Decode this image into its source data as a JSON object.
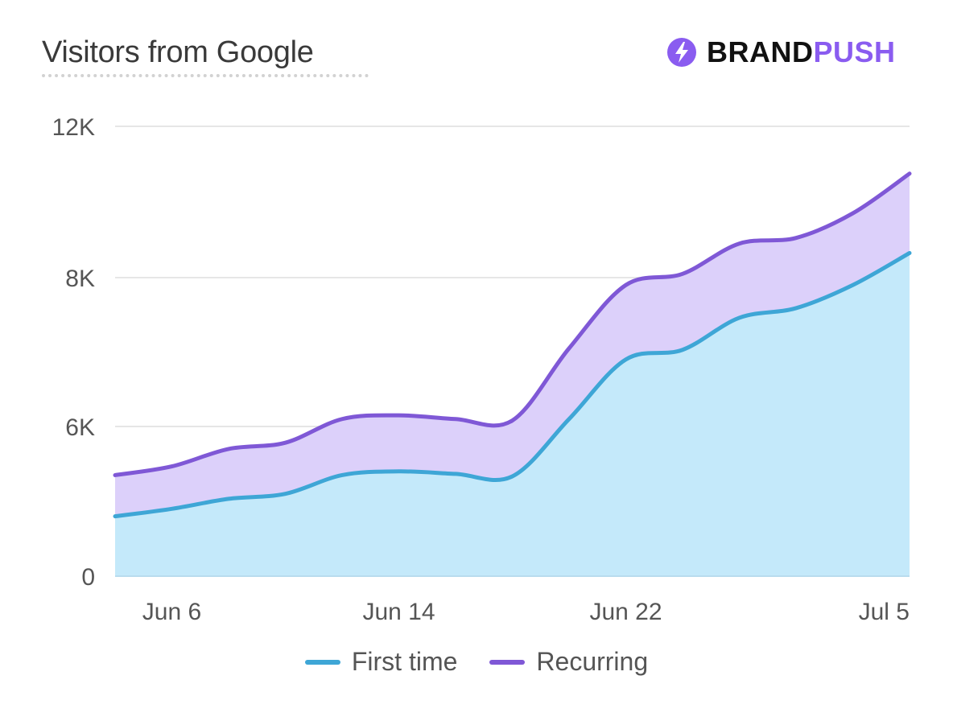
{
  "header": {
    "title": "Visitors from Google"
  },
  "brand": {
    "part1": "BRAND",
    "part2": "PUSH",
    "icon": "lightning-bolt-icon",
    "color": "#8a5cf0"
  },
  "chart_data": {
    "type": "area",
    "stacked": false,
    "title": "Visitors from Google",
    "xlabel": "",
    "ylabel": "",
    "y_ticks": [
      {
        "value": 0,
        "label": "0"
      },
      {
        "value": 6000,
        "label": "6K"
      },
      {
        "value": 8000,
        "label": "8K"
      },
      {
        "value": 12000,
        "label": "12K"
      }
    ],
    "ylim": [
      0,
      12000
    ],
    "x_ticks": [
      "Jun 6",
      "Jun 14",
      "Jun 22",
      "Jul 5"
    ],
    "x": [
      "Jun 4",
      "Jun 6",
      "Jun 8",
      "Jun 10",
      "Jun 12",
      "Jun 14",
      "Jun 16",
      "Jun 18",
      "Jun 20",
      "Jun 22",
      "Jun 24",
      "Jun 26",
      "Jun 28",
      "Jun 30",
      "Jul 2"
    ],
    "grid": true,
    "legend": "bottom",
    "series": [
      {
        "name": "First time",
        "color": "#3ea6d6",
        "fill": "#c4e9fa",
        "values": [
          2400,
          2700,
          3100,
          3300,
          4050,
          4200,
          4100,
          4000,
          6100,
          6900,
          7030,
          7460,
          7590,
          7900,
          8650
        ]
      },
      {
        "name": "Recurring",
        "color": "#7f58d6",
        "fill": "#dcd0fa",
        "values": [
          4050,
          4400,
          5100,
          5350,
          6100,
          6150,
          6100,
          6080,
          7050,
          7900,
          8100,
          8900,
          9050,
          9700,
          10750
        ]
      }
    ]
  }
}
